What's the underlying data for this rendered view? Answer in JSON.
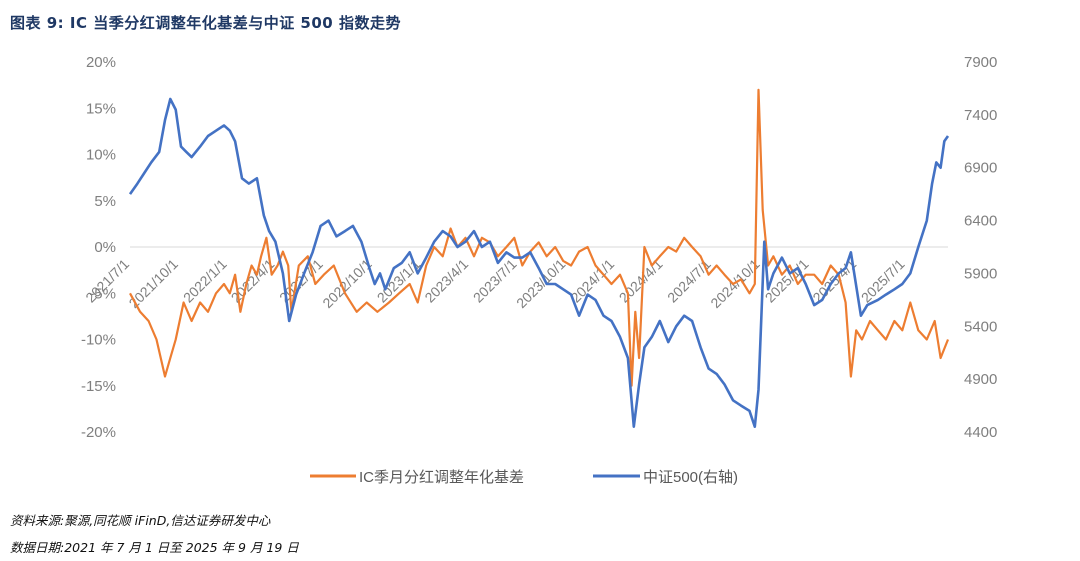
{
  "figure": {
    "title": "图表 9:  IC 当季分红调整年化基差与中证 500 指数走势",
    "source": "资料来源:聚源,同花顺 iFinD,信达证券研发中心",
    "date_note": "数据日期:2021 年 7 月 1 日至 2025 年 9 月 19 日"
  },
  "chart_data": {
    "type": "line",
    "title": "",
    "x_ticks": [
      "2021/7/1",
      "2021/10/1",
      "2022/1/1",
      "2022/4/1",
      "2022/7/1",
      "2022/10/1",
      "2023/1/1",
      "2023/4/1",
      "2023/7/1",
      "2023/10/1",
      "2024/1/1",
      "2024/4/1",
      "2024/7/1",
      "2024/10/1",
      "2025/1/1",
      "2025/4/1",
      "2025/7/1"
    ],
    "y_left": {
      "min": -0.2,
      "max": 0.2,
      "ticks": [
        "20%",
        "15%",
        "10%",
        "5%",
        "0%",
        "-5%",
        "-10%",
        "-15%",
        "-20%"
      ]
    },
    "y_right": {
      "min": 4400,
      "max": 7900,
      "ticks": [
        "7900",
        "7400",
        "6900",
        "6400",
        "5900",
        "5400",
        "4900",
        "4400"
      ]
    },
    "legend": [
      "IC季月分红调整年化基差",
      "中证500(右轴)"
    ],
    "legend_position": "bottom",
    "colors": {
      "basis": "#ED7D31",
      "index": "#4472C4"
    },
    "series": [
      {
        "name": "IC季月分红调整年化基差",
        "axis": "left",
        "points": [
          [
            "2021/7/1",
            -0.05
          ],
          [
            "2021/7/20",
            -0.07
          ],
          [
            "2021/8/5",
            -0.08
          ],
          [
            "2021/8/20",
            -0.1
          ],
          [
            "2021/9/5",
            -0.14
          ],
          [
            "2021/9/15",
            -0.12
          ],
          [
            "2021/9/25",
            -0.1
          ],
          [
            "2021/10/10",
            -0.06
          ],
          [
            "2021/10/25",
            -0.08
          ],
          [
            "2021/11/10",
            -0.06
          ],
          [
            "2021/11/25",
            -0.07
          ],
          [
            "2021/12/10",
            -0.05
          ],
          [
            "2021/12/25",
            -0.04
          ],
          [
            "2022/1/5",
            -0.05
          ],
          [
            "2022/1/15",
            -0.03
          ],
          [
            "2022/1/25",
            -0.07
          ],
          [
            "2022/2/5",
            -0.04
          ],
          [
            "2022/2/15",
            -0.02
          ],
          [
            "2022/2/25",
            -0.03
          ],
          [
            "2022/3/5",
            -0.01
          ],
          [
            "2022/3/15",
            0.01
          ],
          [
            "2022/3/25",
            -0.03
          ],
          [
            "2022/4/5",
            -0.02
          ],
          [
            "2022/4/15",
            -0.005
          ],
          [
            "2022/4/25",
            -0.02
          ],
          [
            "2022/5/1",
            -0.07
          ],
          [
            "2022/5/15",
            -0.02
          ],
          [
            "2022/6/1",
            -0.01
          ],
          [
            "2022/6/15",
            -0.04
          ],
          [
            "2022/7/1",
            -0.03
          ],
          [
            "2022/7/20",
            -0.02
          ],
          [
            "2022/8/10",
            -0.05
          ],
          [
            "2022/9/1",
            -0.07
          ],
          [
            "2022/9/20",
            -0.06
          ],
          [
            "2022/10/10",
            -0.07
          ],
          [
            "2022/11/1",
            -0.06
          ],
          [
            "2022/11/20",
            -0.05
          ],
          [
            "2022/12/10",
            -0.04
          ],
          [
            "2022/12/25",
            -0.06
          ],
          [
            "2023/1/10",
            -0.02
          ],
          [
            "2023/1/25",
            0.0
          ],
          [
            "2023/2/10",
            -0.01
          ],
          [
            "2023/2/25",
            0.02
          ],
          [
            "2023/3/10",
            0.0
          ],
          [
            "2023/3/25",
            0.01
          ],
          [
            "2023/4/10",
            -0.01
          ],
          [
            "2023/4/25",
            0.01
          ],
          [
            "2023/5/10",
            0.005
          ],
          [
            "2023/5/25",
            -0.01
          ],
          [
            "2023/6/10",
            0.0
          ],
          [
            "2023/6/25",
            0.01
          ],
          [
            "2023/7/10",
            -0.02
          ],
          [
            "2023/7/25",
            -0.005
          ],
          [
            "2023/8/10",
            0.005
          ],
          [
            "2023/8/25",
            -0.01
          ],
          [
            "2023/9/10",
            0.0
          ],
          [
            "2023/9/25",
            -0.015
          ],
          [
            "2023/10/10",
            -0.02
          ],
          [
            "2023/10/25",
            -0.005
          ],
          [
            "2023/11/10",
            0.0
          ],
          [
            "2023/11/25",
            -0.02
          ],
          [
            "2023/12/10",
            -0.03
          ],
          [
            "2023/12/25",
            -0.04
          ],
          [
            "2024/1/10",
            -0.03
          ],
          [
            "2024/1/25",
            -0.05
          ],
          [
            "2024/2/1",
            -0.15
          ],
          [
            "2024/2/8",
            -0.07
          ],
          [
            "2024/2/15",
            -0.12
          ],
          [
            "2024/2/25",
            0.0
          ],
          [
            "2024/3/10",
            -0.02
          ],
          [
            "2024/3/25",
            -0.01
          ],
          [
            "2024/4/10",
            0.0
          ],
          [
            "2024/4/25",
            -0.005
          ],
          [
            "2024/5/10",
            0.01
          ],
          [
            "2024/5/25",
            0.0
          ],
          [
            "2024/6/10",
            -0.01
          ],
          [
            "2024/6/25",
            -0.03
          ],
          [
            "2024/7/10",
            -0.02
          ],
          [
            "2024/7/25",
            -0.03
          ],
          [
            "2024/8/10",
            -0.04
          ],
          [
            "2024/8/25",
            -0.035
          ],
          [
            "2024/9/10",
            -0.05
          ],
          [
            "2024/9/20",
            -0.04
          ],
          [
            "2024/9/27",
            0.17
          ],
          [
            "2024/10/5",
            0.04
          ],
          [
            "2024/10/15",
            -0.02
          ],
          [
            "2024/10/25",
            -0.01
          ],
          [
            "2024/11/10",
            -0.03
          ],
          [
            "2024/11/25",
            -0.02
          ],
          [
            "2024/12/10",
            -0.04
          ],
          [
            "2024/12/25",
            -0.03
          ],
          [
            "2025/1/10",
            -0.03
          ],
          [
            "2025/1/25",
            -0.04
          ],
          [
            "2025/2/10",
            -0.02
          ],
          [
            "2025/2/25",
            -0.03
          ],
          [
            "2025/3/10",
            -0.06
          ],
          [
            "2025/3/20",
            -0.14
          ],
          [
            "2025/3/30",
            -0.09
          ],
          [
            "2025/4/10",
            -0.1
          ],
          [
            "2025/4/25",
            -0.08
          ],
          [
            "2025/5/10",
            -0.09
          ],
          [
            "2025/5/25",
            -0.1
          ],
          [
            "2025/6/10",
            -0.08
          ],
          [
            "2025/6/25",
            -0.09
          ],
          [
            "2025/7/10",
            -0.06
          ],
          [
            "2025/7/25",
            -0.09
          ],
          [
            "2025/8/10",
            -0.1
          ],
          [
            "2025/8/25",
            -0.08
          ],
          [
            "2025/9/5",
            -0.12
          ],
          [
            "2025/9/19",
            -0.1
          ]
        ]
      },
      {
        "name": "中证500(右轴)",
        "axis": "right",
        "points": [
          [
            "2021/7/1",
            6650
          ],
          [
            "2021/7/15",
            6750
          ],
          [
            "2021/7/28",
            6850
          ],
          [
            "2021/8/10",
            6950
          ],
          [
            "2021/8/25",
            7050
          ],
          [
            "2021/9/5",
            7350
          ],
          [
            "2021/9/15",
            7550
          ],
          [
            "2021/9/25",
            7450
          ],
          [
            "2021/10/5",
            7100
          ],
          [
            "2021/10/15",
            7050
          ],
          [
            "2021/10/25",
            7000
          ],
          [
            "2021/11/10",
            7100
          ],
          [
            "2021/11/25",
            7200
          ],
          [
            "2021/12/10",
            7250
          ],
          [
            "2021/12/25",
            7300
          ],
          [
            "2022/1/5",
            7250
          ],
          [
            "2022/1/15",
            7150
          ],
          [
            "2022/1/28",
            6800
          ],
          [
            "2022/2/10",
            6750
          ],
          [
            "2022/2/25",
            6800
          ],
          [
            "2022/3/10",
            6450
          ],
          [
            "2022/3/20",
            6300
          ],
          [
            "2022/4/1",
            6200
          ],
          [
            "2022/4/15",
            5900
          ],
          [
            "2022/4/27",
            5450
          ],
          [
            "2022/5/10",
            5700
          ],
          [
            "2022/5/25",
            5900
          ],
          [
            "2022/6/10",
            6100
          ],
          [
            "2022/6/25",
            6350
          ],
          [
            "2022/7/10",
            6400
          ],
          [
            "2022/7/25",
            6250
          ],
          [
            "2022/8/10",
            6300
          ],
          [
            "2022/8/25",
            6350
          ],
          [
            "2022/9/10",
            6200
          ],
          [
            "2022/9/25",
            5950
          ],
          [
            "2022/10/5",
            5800
          ],
          [
            "2022/10/15",
            5900
          ],
          [
            "2022/10/25",
            5750
          ],
          [
            "2022/11/10",
            5950
          ],
          [
            "2022/11/25",
            6000
          ],
          [
            "2022/12/10",
            6100
          ],
          [
            "2022/12/25",
            5900
          ],
          [
            "2023/1/10",
            6050
          ],
          [
            "2023/1/25",
            6200
          ],
          [
            "2023/2/10",
            6300
          ],
          [
            "2023/2/25",
            6250
          ],
          [
            "2023/3/10",
            6150
          ],
          [
            "2023/3/25",
            6200
          ],
          [
            "2023/4/10",
            6300
          ],
          [
            "2023/4/25",
            6150
          ],
          [
            "2023/5/10",
            6200
          ],
          [
            "2023/5/25",
            6000
          ],
          [
            "2023/6/10",
            6100
          ],
          [
            "2023/6/25",
            6050
          ],
          [
            "2023/7/10",
            6050
          ],
          [
            "2023/7/25",
            6100
          ],
          [
            "2023/8/10",
            5950
          ],
          [
            "2023/8/25",
            5800
          ],
          [
            "2023/9/10",
            5800
          ],
          [
            "2023/9/25",
            5750
          ],
          [
            "2023/10/10",
            5700
          ],
          [
            "2023/10/25",
            5500
          ],
          [
            "2023/11/10",
            5700
          ],
          [
            "2023/11/25",
            5650
          ],
          [
            "2023/12/10",
            5500
          ],
          [
            "2023/12/25",
            5450
          ],
          [
            "2024/1/10",
            5300
          ],
          [
            "2024/1/25",
            5100
          ],
          [
            "2024/2/5",
            4450
          ],
          [
            "2024/2/15",
            4850
          ],
          [
            "2024/2/25",
            5200
          ],
          [
            "2024/3/10",
            5300
          ],
          [
            "2024/3/25",
            5450
          ],
          [
            "2024/4/10",
            5250
          ],
          [
            "2024/4/25",
            5400
          ],
          [
            "2024/5/10",
            5500
          ],
          [
            "2024/5/25",
            5450
          ],
          [
            "2024/6/10",
            5200
          ],
          [
            "2024/6/25",
            5000
          ],
          [
            "2024/7/10",
            4950
          ],
          [
            "2024/7/25",
            4850
          ],
          [
            "2024/8/10",
            4700
          ],
          [
            "2024/8/25",
            4650
          ],
          [
            "2024/9/10",
            4600
          ],
          [
            "2024/9/20",
            4450
          ],
          [
            "2024/9/27",
            4800
          ],
          [
            "2024/10/8",
            6200
          ],
          [
            "2024/10/15",
            5750
          ],
          [
            "2024/10/25",
            5900
          ],
          [
            "2024/11/10",
            6050
          ],
          [
            "2024/11/25",
            5900
          ],
          [
            "2024/12/10",
            5950
          ],
          [
            "2024/12/25",
            5800
          ],
          [
            "2025/1/10",
            5600
          ],
          [
            "2025/1/25",
            5650
          ],
          [
            "2025/2/10",
            5800
          ],
          [
            "2025/2/25",
            5900
          ],
          [
            "2025/3/10",
            5950
          ],
          [
            "2025/3/20",
            6100
          ],
          [
            "2025/4/8",
            5500
          ],
          [
            "2025/4/20",
            5600
          ],
          [
            "2025/5/10",
            5650
          ],
          [
            "2025/5/25",
            5700
          ],
          [
            "2025/6/10",
            5750
          ],
          [
            "2025/6/25",
            5800
          ],
          [
            "2025/7/10",
            5900
          ],
          [
            "2025/7/25",
            6150
          ],
          [
            "2025/8/10",
            6400
          ],
          [
            "2025/8/20",
            6750
          ],
          [
            "2025/8/28",
            6950
          ],
          [
            "2025/9/5",
            6900
          ],
          [
            "2025/9/12",
            7150
          ],
          [
            "2025/9/19",
            7200
          ]
        ]
      }
    ]
  }
}
